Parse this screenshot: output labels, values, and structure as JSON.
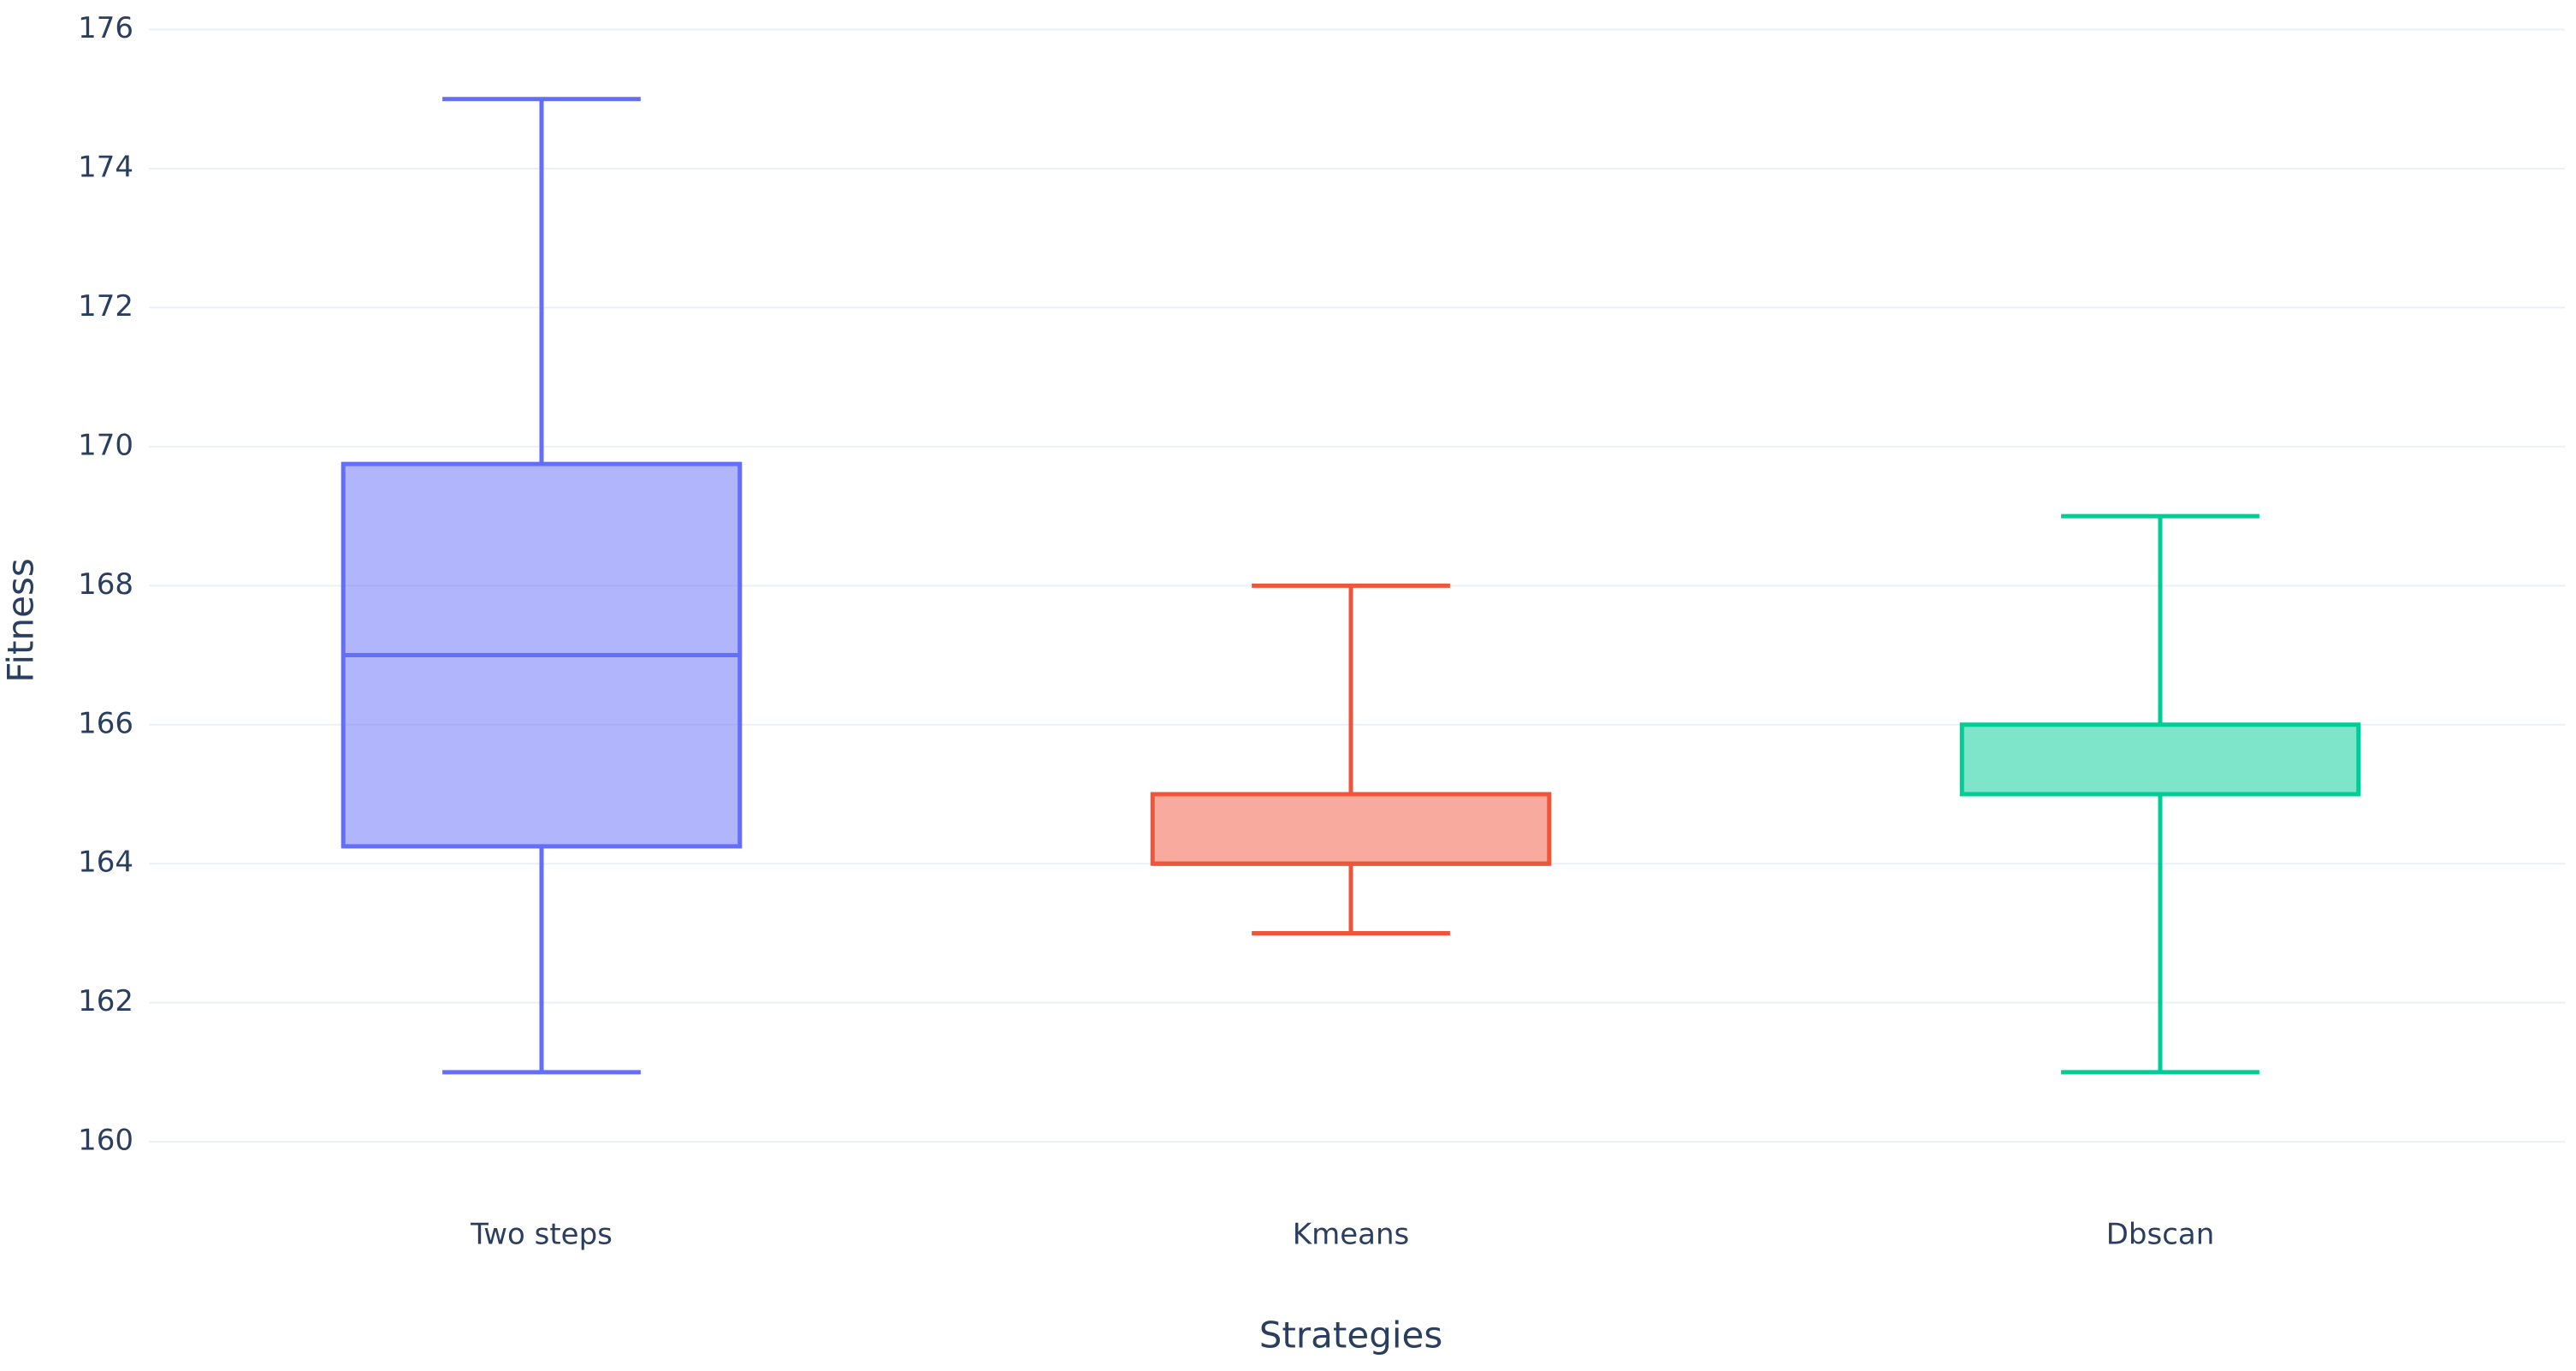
{
  "chart_data": {
    "type": "box",
    "x_label": "Strategies",
    "y_label": "Fitness",
    "categories": [
      "Two steps",
      "Kmeans",
      "Dbscan"
    ],
    "colors": [
      "#636efa",
      "#ef553b",
      "#00cc96"
    ],
    "min": [
      161,
      163,
      161
    ],
    "q1": [
      164.25,
      164,
      165
    ],
    "median": [
      167,
      164,
      165
    ],
    "q3": [
      169.75,
      165,
      166
    ],
    "max": [
      175,
      168,
      169
    ],
    "ylim": [
      159.3,
      176.4
    ],
    "yticks": [
      160,
      162,
      164,
      166,
      168,
      170,
      172,
      174,
      176
    ],
    "grid": true
  }
}
